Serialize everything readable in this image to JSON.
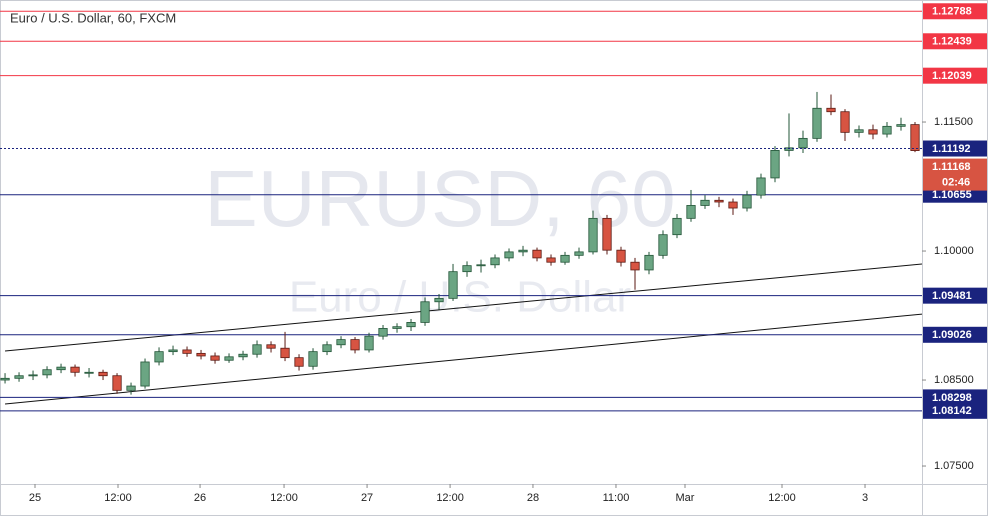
{
  "chart_data": {
    "type": "candlestick",
    "title": "Euro / U.S. Dollar, 60, FXCM",
    "watermark": "EURUSD, 60",
    "watermark_sub": "Euro / U.S. Dollar",
    "up_color": "#6ba583",
    "down_color": "#d75442",
    "up_border": "#225437",
    "down_border": "#5b1a13",
    "xlim": [
      -0.36,
      65.5
    ],
    "ylim": [
      1.07291,
      1.12919
    ],
    "yticks": [
      {
        "value": 1.075,
        "label": "1.07500"
      },
      {
        "value": 1.085,
        "label": "1.08500"
      },
      {
        "value": 1.1,
        "label": "1.10000"
      },
      {
        "value": 1.115,
        "label": "1.11500"
      }
    ],
    "xticks": [
      {
        "value": 2.14,
        "label": "25"
      },
      {
        "value": 8.07,
        "label": "12:00"
      },
      {
        "value": 13.93,
        "label": "26"
      },
      {
        "value": 19.93,
        "label": "12:00"
      },
      {
        "value": 25.86,
        "label": "27"
      },
      {
        "value": 31.79,
        "label": "12:00"
      },
      {
        "value": 37.71,
        "label": "28"
      },
      {
        "value": 43.64,
        "label": "11:00"
      },
      {
        "value": 48.57,
        "label": "Mar"
      },
      {
        "value": 55.5,
        "label": "12:00"
      },
      {
        "value": 61.43,
        "label": "3"
      }
    ],
    "levels": [
      {
        "value": 1.12788,
        "color": "#f23645"
      },
      {
        "value": 1.12439,
        "color": "#f23645"
      },
      {
        "value": 1.12039,
        "color": "#f23645"
      },
      {
        "value": 1.10655,
        "color": "#1a237e"
      },
      {
        "value": 1.09481,
        "color": "#1a237e"
      },
      {
        "value": 1.09026,
        "color": "#1a237e"
      },
      {
        "value": 1.08298,
        "color": "#1a237e"
      },
      {
        "value": 1.08142,
        "color": "#1a237e"
      }
    ],
    "price_line": {
      "value": 1.11192,
      "color": "#1a237e"
    },
    "countdown": "02:46",
    "trendlines": [
      {
        "x": [
          0,
          65.5
        ],
        "y": [
          1.08837,
          1.09849
        ]
      },
      {
        "x": [
          0,
          65.5
        ],
        "y": [
          1.08221,
          1.09267
        ]
      }
    ],
    "ohlc": [
      [
        1.085,
        1.0858,
        1.0846,
        1.0852
      ],
      [
        1.0852,
        1.0859,
        1.0848,
        1.0855
      ],
      [
        1.0855,
        1.0861,
        1.085,
        1.0856
      ],
      [
        1.0856,
        1.0866,
        1.0852,
        1.0862
      ],
      [
        1.0862,
        1.0869,
        1.0858,
        1.0865
      ],
      [
        1.0865,
        1.0868,
        1.0854,
        1.0859
      ],
      [
        1.0859,
        1.0864,
        1.0853,
        1.0859
      ],
      [
        1.0859,
        1.0862,
        1.085,
        1.0855
      ],
      [
        1.0855,
        1.0858,
        1.0834,
        1.0838
      ],
      [
        1.0838,
        1.0847,
        1.0833,
        1.0843
      ],
      [
        1.0843,
        1.0875,
        1.084,
        1.0871
      ],
      [
        1.0871,
        1.0888,
        1.0867,
        1.0883
      ],
      [
        1.0883,
        1.089,
        1.0879,
        1.0885
      ],
      [
        1.0885,
        1.0889,
        1.0877,
        1.0881
      ],
      [
        1.0881,
        1.0885,
        1.0874,
        1.0878
      ],
      [
        1.0878,
        1.0882,
        1.0869,
        1.0873
      ],
      [
        1.0873,
        1.0881,
        1.087,
        1.0877
      ],
      [
        1.0877,
        1.0884,
        1.0873,
        1.088
      ],
      [
        1.088,
        1.0896,
        1.0876,
        1.0891
      ],
      [
        1.0891,
        1.0895,
        1.0882,
        1.0887
      ],
      [
        1.0887,
        1.0906,
        1.0872,
        1.0876
      ],
      [
        1.0876,
        1.088,
        1.0861,
        1.0866
      ],
      [
        1.0866,
        1.0887,
        1.0862,
        1.0883
      ],
      [
        1.0883,
        1.0895,
        1.0879,
        1.0891
      ],
      [
        1.0891,
        1.0901,
        1.0887,
        1.0897
      ],
      [
        1.0897,
        1.09,
        1.0881,
        1.0885
      ],
      [
        1.0885,
        1.0905,
        1.0882,
        1.0901
      ],
      [
        1.0901,
        1.0914,
        1.0897,
        1.091
      ],
      [
        1.091,
        1.0916,
        1.0905,
        1.0912
      ],
      [
        1.0912,
        1.0921,
        1.0907,
        1.0917
      ],
      [
        1.0917,
        1.0946,
        1.0913,
        1.0941
      ],
      [
        1.0941,
        1.095,
        1.0932,
        1.0945
      ],
      [
        1.0945,
        1.0985,
        1.0942,
        1.0976
      ],
      [
        1.0976,
        1.0988,
        1.097,
        1.0983
      ],
      [
        1.0983,
        1.099,
        1.0975,
        1.0984
      ],
      [
        1.0984,
        1.0996,
        1.098,
        1.0992
      ],
      [
        1.0992,
        1.1003,
        1.0988,
        1.0999
      ],
      [
        1.0999,
        1.1006,
        1.0994,
        1.1001
      ],
      [
        1.1001,
        1.1004,
        1.0988,
        1.0992
      ],
      [
        1.0992,
        1.0996,
        1.0983,
        1.0987
      ],
      [
        1.0987,
        1.0999,
        1.0984,
        1.0995
      ],
      [
        1.0995,
        1.1004,
        1.0991,
        1.0999
      ],
      [
        1.0999,
        1.1047,
        1.0996,
        1.1038
      ],
      [
        1.1038,
        1.1042,
        1.0996,
        1.1001
      ],
      [
        1.1001,
        1.1005,
        1.0982,
        1.0987
      ],
      [
        1.0987,
        1.0992,
        1.0955,
        1.0978
      ],
      [
        1.0978,
        1.0999,
        1.0973,
        1.0995
      ],
      [
        1.0995,
        1.1024,
        1.0991,
        1.1019
      ],
      [
        1.1019,
        1.1043,
        1.1015,
        1.1038
      ],
      [
        1.1038,
        1.1071,
        1.1034,
        1.1053
      ],
      [
        1.1053,
        1.1065,
        1.1049,
        1.1059
      ],
      [
        1.1059,
        1.1063,
        1.1051,
        1.1057
      ],
      [
        1.1057,
        1.1061,
        1.1042,
        1.105
      ],
      [
        1.105,
        1.107,
        1.1046,
        1.1065
      ],
      [
        1.1065,
        1.109,
        1.1061,
        1.1085
      ],
      [
        1.1085,
        1.1122,
        1.108,
        1.1117
      ],
      [
        1.1117,
        1.116,
        1.111,
        1.112
      ],
      [
        1.112,
        1.114,
        1.1114,
        1.1131
      ],
      [
        1.1131,
        1.1185,
        1.1127,
        1.1166
      ],
      [
        1.1166,
        1.1182,
        1.1158,
        1.1162
      ],
      [
        1.1162,
        1.1165,
        1.1128,
        1.1138
      ],
      [
        1.1138,
        1.1146,
        1.1132,
        1.1141
      ],
      [
        1.1141,
        1.1147,
        1.113,
        1.1136
      ],
      [
        1.1136,
        1.115,
        1.1132,
        1.1145
      ],
      [
        1.1145,
        1.1155,
        1.114,
        1.1147
      ],
      [
        1.1147,
        1.115,
        1.1115,
        1.11168
      ]
    ]
  }
}
